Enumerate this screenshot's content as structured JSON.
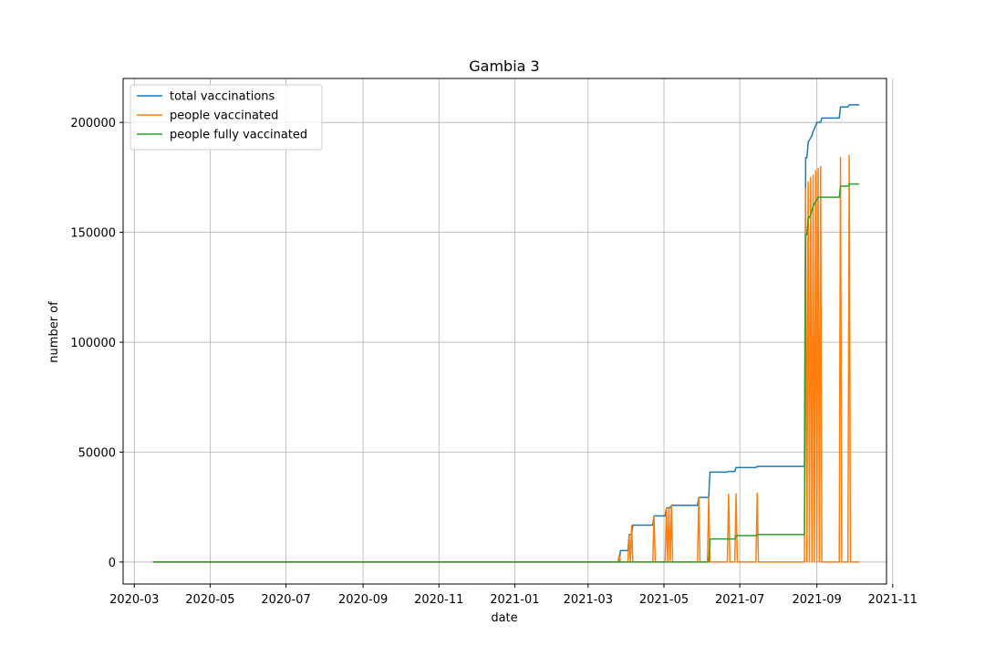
{
  "chart_data": {
    "type": "line",
    "title": "Gambia 3",
    "xlabel": "date",
    "ylabel": "number of",
    "x_type": "date",
    "xlim": [
      "2020-02-21",
      "2021-10-27"
    ],
    "ylim": [
      -10000,
      220000
    ],
    "x_ticks": [
      "2020-03-01",
      "2020-05-01",
      "2020-07-01",
      "2020-09-01",
      "2020-11-01",
      "2021-01-01",
      "2021-03-01",
      "2021-05-01",
      "2021-07-01",
      "2021-09-01",
      "2021-11-01"
    ],
    "x_tick_labels": [
      "2020-03",
      "2020-05",
      "2020-07",
      "2020-09",
      "2020-11",
      "2021-01",
      "2021-03",
      "2021-05",
      "2021-07",
      "2021-09",
      "2021-11"
    ],
    "y_ticks": [
      0,
      50000,
      100000,
      150000,
      200000
    ],
    "y_tick_labels": [
      "0",
      "50000",
      "100000",
      "150000",
      "200000"
    ],
    "grid": true,
    "legend": "top-left",
    "series": [
      {
        "name": "total vaccinations",
        "color": "#1f77b4",
        "points": [
          [
            "2020-03-16",
            0
          ],
          [
            "2021-03-26",
            0
          ],
          [
            "2021-03-27",
            5200
          ],
          [
            "2021-04-02",
            5200
          ],
          [
            "2021-04-03",
            12500
          ],
          [
            "2021-04-05",
            12500
          ],
          [
            "2021-04-06",
            16800
          ],
          [
            "2021-04-22",
            16800
          ],
          [
            "2021-04-23",
            21000
          ],
          [
            "2021-05-02",
            21000
          ],
          [
            "2021-05-03",
            24600
          ],
          [
            "2021-05-06",
            24600
          ],
          [
            "2021-05-07",
            25800
          ],
          [
            "2021-05-28",
            25800
          ],
          [
            "2021-05-29",
            29400
          ],
          [
            "2021-06-06",
            29400
          ],
          [
            "2021-06-07",
            40900
          ],
          [
            "2021-06-21",
            40900
          ],
          [
            "2021-06-22",
            41200
          ],
          [
            "2021-06-27",
            41200
          ],
          [
            "2021-06-28",
            43000
          ],
          [
            "2021-07-14",
            43000
          ],
          [
            "2021-07-15",
            43500
          ],
          [
            "2021-08-22",
            43500
          ],
          [
            "2021-08-23",
            184000
          ],
          [
            "2021-08-24",
            184000
          ],
          [
            "2021-08-25",
            191000
          ],
          [
            "2021-08-26",
            192000
          ],
          [
            "2021-08-28",
            194000
          ],
          [
            "2021-08-29",
            196000
          ],
          [
            "2021-08-30",
            197000
          ],
          [
            "2021-09-01",
            200000
          ],
          [
            "2021-09-04",
            200000
          ],
          [
            "2021-09-05",
            202000
          ],
          [
            "2021-09-19",
            202000
          ],
          [
            "2021-09-20",
            207000
          ],
          [
            "2021-09-26",
            207000
          ],
          [
            "2021-09-27",
            208000
          ],
          [
            "2021-10-05",
            208000
          ]
        ]
      },
      {
        "name": "people vaccinated",
        "color": "#ff7f0e",
        "points": [
          [
            "2020-03-16",
            0
          ],
          [
            "2021-03-25",
            0
          ],
          [
            "2021-03-26",
            3000
          ],
          [
            "2021-03-27",
            0
          ],
          [
            "2021-04-02",
            0
          ],
          [
            "2021-04-03",
            12500
          ],
          [
            "2021-04-04",
            0
          ],
          [
            "2021-04-05",
            16500
          ],
          [
            "2021-04-06",
            0
          ],
          [
            "2021-04-22",
            0
          ],
          [
            "2021-04-23",
            21000
          ],
          [
            "2021-04-24",
            0
          ],
          [
            "2021-05-02",
            0
          ],
          [
            "2021-05-03",
            24600
          ],
          [
            "2021-05-04",
            0
          ],
          [
            "2021-05-05",
            25000
          ],
          [
            "2021-05-06",
            0
          ],
          [
            "2021-05-07",
            25800
          ],
          [
            "2021-05-08",
            0
          ],
          [
            "2021-05-28",
            0
          ],
          [
            "2021-05-29",
            29400
          ],
          [
            "2021-05-30",
            0
          ],
          [
            "2021-06-05",
            0
          ],
          [
            "2021-06-06",
            29400
          ],
          [
            "2021-06-07",
            0
          ],
          [
            "2021-06-21",
            0
          ],
          [
            "2021-06-22",
            30800
          ],
          [
            "2021-06-23",
            0
          ],
          [
            "2021-06-27",
            0
          ],
          [
            "2021-06-28",
            31000
          ],
          [
            "2021-06-29",
            0
          ],
          [
            "2021-07-14",
            0
          ],
          [
            "2021-07-15",
            31300
          ],
          [
            "2021-07-16",
            0
          ],
          [
            "2021-08-22",
            0
          ],
          [
            "2021-08-23",
            170000
          ],
          [
            "2021-08-24",
            0
          ],
          [
            "2021-08-25",
            173000
          ],
          [
            "2021-08-26",
            0
          ],
          [
            "2021-08-27",
            175000
          ],
          [
            "2021-08-28",
            0
          ],
          [
            "2021-08-29",
            176000
          ],
          [
            "2021-08-30",
            0
          ],
          [
            "2021-08-31",
            178000
          ],
          [
            "2021-09-01",
            0
          ],
          [
            "2021-09-02",
            179000
          ],
          [
            "2021-09-03",
            0
          ],
          [
            "2021-09-04",
            180000
          ],
          [
            "2021-09-05",
            0
          ],
          [
            "2021-09-19",
            0
          ],
          [
            "2021-09-20",
            184000
          ],
          [
            "2021-09-21",
            0
          ],
          [
            "2021-09-26",
            0
          ],
          [
            "2021-09-27",
            185000
          ],
          [
            "2021-09-28",
            0
          ],
          [
            "2021-10-05",
            0
          ]
        ]
      },
      {
        "name": "people fully vaccinated",
        "color": "#2ca02c",
        "points": [
          [
            "2020-03-16",
            0
          ],
          [
            "2021-06-06",
            0
          ],
          [
            "2021-06-07",
            10500
          ],
          [
            "2021-06-27",
            10500
          ],
          [
            "2021-06-28",
            12000
          ],
          [
            "2021-07-14",
            12000
          ],
          [
            "2021-07-15",
            12500
          ],
          [
            "2021-08-22",
            12500
          ],
          [
            "2021-08-23",
            149000
          ],
          [
            "2021-08-24",
            149000
          ],
          [
            "2021-08-25",
            156000
          ],
          [
            "2021-08-27",
            158000
          ],
          [
            "2021-08-29",
            162000
          ],
          [
            "2021-08-31",
            164000
          ],
          [
            "2021-09-02",
            166000
          ],
          [
            "2021-09-19",
            166000
          ],
          [
            "2021-09-20",
            171000
          ],
          [
            "2021-09-26",
            171000
          ],
          [
            "2021-09-27",
            172000
          ],
          [
            "2021-10-05",
            172000
          ]
        ]
      }
    ]
  }
}
